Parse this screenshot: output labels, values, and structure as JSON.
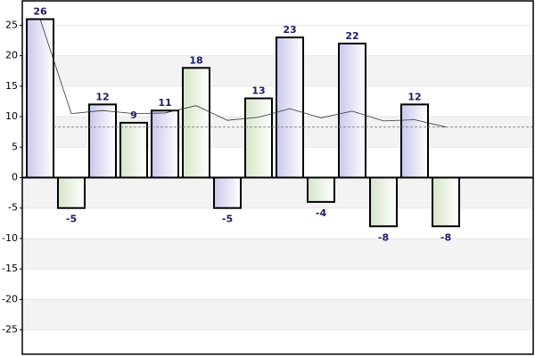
{
  "chart_data": {
    "type": "bar",
    "categories": [
      null,
      null,
      null,
      null,
      null,
      null,
      null,
      null,
      null,
      null,
      null,
      null,
      null,
      null
    ],
    "values": [
      26,
      -5,
      12,
      9,
      11,
      18,
      -5,
      13,
      23,
      -4,
      22,
      -8,
      12,
      -8
    ],
    "colors": [
      "#c8c8ec",
      "#d4e6c8"
    ],
    "line": {
      "color": "#333333",
      "values": [
        26,
        10.5,
        11,
        10.5,
        10.6,
        11.8,
        9.4,
        9.9,
        11.3,
        9.8,
        10.9,
        9.3,
        9.5,
        8.3
      ]
    },
    "average": 8.29,
    "average_color": "#888888",
    "ylim": [
      -29,
      29
    ],
    "yticks": [
      -25,
      -20,
      -15,
      -10,
      -5,
      0,
      5,
      10,
      15,
      20,
      25
    ],
    "grid": true
  }
}
